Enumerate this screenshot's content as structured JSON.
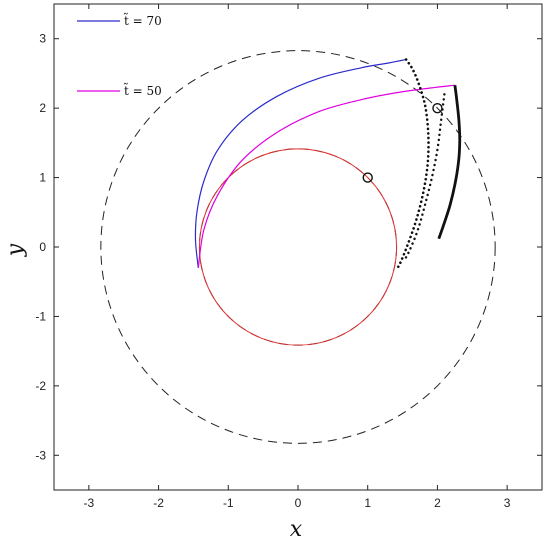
{
  "chart_data": {
    "type": "line",
    "title": "",
    "xlabel": "x",
    "ylabel": "y",
    "xlim": [
      -3.5,
      3.5
    ],
    "ylim": [
      -3.5,
      3.5
    ],
    "xticks": [
      -3,
      -2,
      -1,
      0,
      1,
      2,
      3
    ],
    "yticks": [
      -3,
      -2,
      -1,
      0,
      1,
      2,
      3
    ],
    "xtick_labels": [
      "-3",
      "-2",
      "-1",
      "0",
      "1",
      "2",
      "3"
    ],
    "ytick_labels": [
      "-3",
      "-2",
      "-1",
      "0",
      "1",
      "2",
      "3"
    ],
    "grid": false,
    "legend_position": "top-left",
    "legend": [
      {
        "label": "t̃ = 70",
        "color": "#2b2bcc"
      },
      {
        "label": "t̃ = 50",
        "color": "#e000e0"
      }
    ],
    "dashed_circles": [
      {
        "center": [
          0,
          0
        ],
        "radius": 1.414
      },
      {
        "center": [
          0,
          0
        ],
        "radius": 2.828
      }
    ],
    "red_circle": {
      "center": [
        0,
        0
      ],
      "radius": 1.414,
      "color": "#e03030"
    },
    "markers": [
      {
        "x": 1,
        "y": 1
      },
      {
        "x": 2,
        "y": 2
      }
    ],
    "series": [
      {
        "color": "#2b2bcc",
        "points": [
          [
            -1.43,
            -0.3
          ],
          [
            -1.47,
            0.1
          ],
          [
            -1.45,
            0.5
          ],
          [
            -1.35,
            0.95
          ],
          [
            -1.15,
            1.4
          ],
          [
            -0.8,
            1.82
          ],
          [
            -0.3,
            2.17
          ],
          [
            0.3,
            2.43
          ],
          [
            0.9,
            2.58
          ],
          [
            1.3,
            2.65
          ],
          [
            1.55,
            2.7
          ]
        ]
      },
      {
        "color": "#e000e0",
        "points": [
          [
            -1.43,
            -0.3
          ],
          [
            -1.35,
            0.25
          ],
          [
            -1.15,
            0.75
          ],
          [
            -0.8,
            1.25
          ],
          [
            -0.3,
            1.65
          ],
          [
            0.3,
            1.95
          ],
          [
            0.9,
            2.12
          ],
          [
            1.4,
            2.22
          ],
          [
            1.9,
            2.29
          ],
          [
            2.25,
            2.33
          ]
        ]
      }
    ],
    "dotted_curve": [
      [
        1.55,
        2.7
      ],
      [
        1.65,
        2.55
      ],
      [
        1.75,
        2.3
      ],
      [
        1.83,
        2.0
      ],
      [
        1.87,
        1.6
      ],
      [
        1.86,
        1.2
      ],
      [
        1.8,
        0.8
      ],
      [
        1.7,
        0.4
      ],
      [
        1.58,
        0.05
      ],
      [
        1.48,
        -0.2
      ],
      [
        1.43,
        -0.3
      ]
    ],
    "dotted_curve2": [
      [
        2.1,
        2.2
      ],
      [
        2.05,
        1.8
      ],
      [
        2.0,
        1.4
      ],
      [
        1.92,
        1.0
      ],
      [
        1.82,
        0.6
      ],
      [
        1.72,
        0.25
      ],
      [
        1.6,
        -0.05
      ],
      [
        1.52,
        -0.2
      ]
    ],
    "thick_curve": [
      [
        2.25,
        2.33
      ],
      [
        2.28,
        2.1
      ],
      [
        2.31,
        1.8
      ],
      [
        2.32,
        1.5
      ],
      [
        2.3,
        1.2
      ],
      [
        2.25,
        0.9
      ],
      [
        2.18,
        0.6
      ],
      [
        2.1,
        0.35
      ],
      [
        2.02,
        0.12
      ]
    ]
  }
}
